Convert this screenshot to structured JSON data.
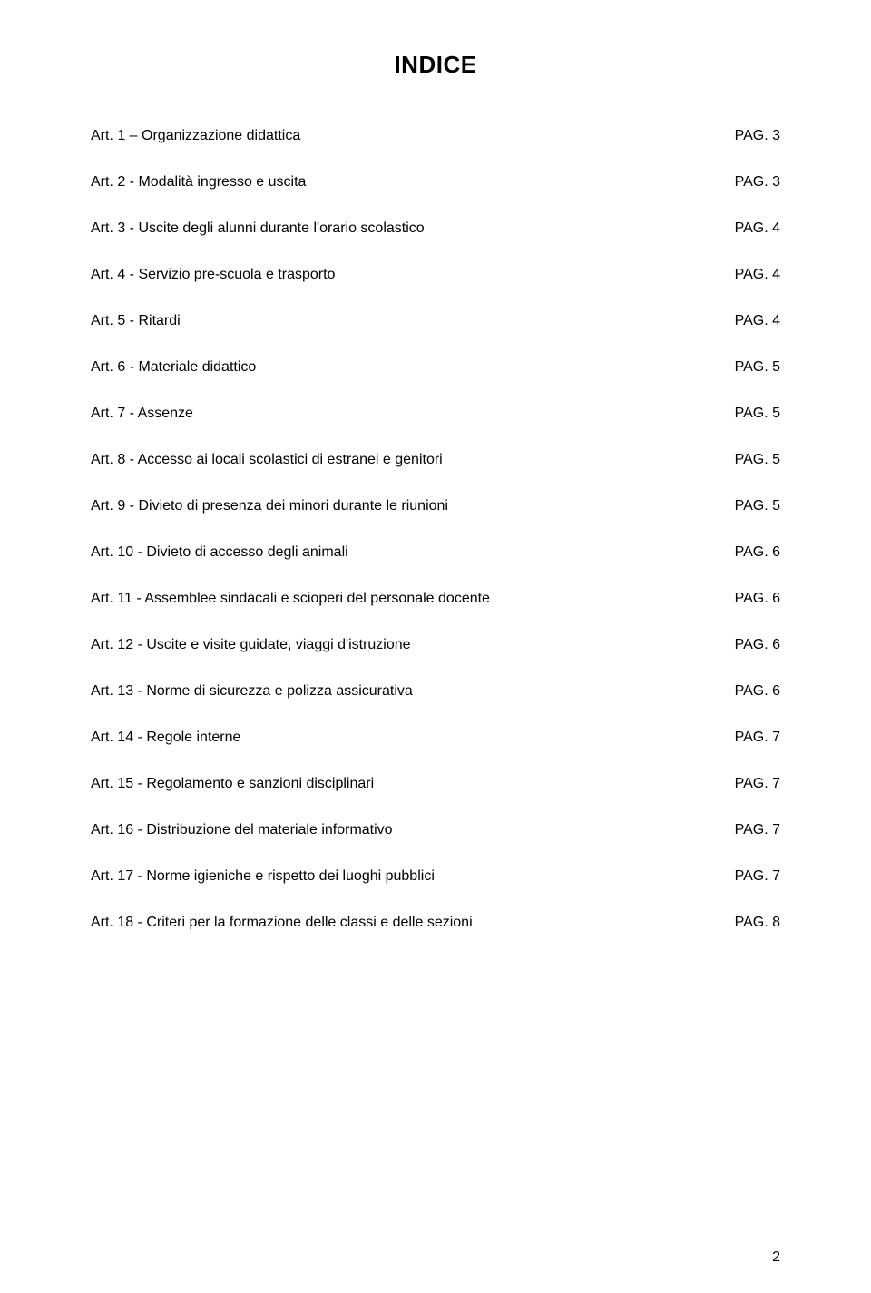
{
  "title": "INDICE",
  "toc": [
    {
      "label": "Art. 1 – Organizzazione didattica",
      "page": "PAG. 3"
    },
    {
      "label": "Art. 2 - Modalità  ingresso e uscita",
      "page": "PAG. 3"
    },
    {
      "label": "Art. 3 - Uscite degli alunni durante l'orario scolastico",
      "page": "PAG. 4"
    },
    {
      "label": "Art. 4 - Servizio pre-scuola e trasporto",
      "page": "PAG. 4"
    },
    {
      "label": "Art. 5 - Ritardi",
      "page": "PAG. 4"
    },
    {
      "label": "Art. 6 - Materiale didattico",
      "page": "PAG. 5"
    },
    {
      "label": "Art. 7 - Assenze",
      "page": "PAG. 5"
    },
    {
      "label": "Art. 8 - Accesso ai locali scolastici di estranei e genitori",
      "page": "PAG. 5"
    },
    {
      "label": "Art. 9 - Divieto di presenza dei minori durante le riunioni",
      "page": "PAG. 5"
    },
    {
      "label": "Art. 10 - Divieto di accesso degli animali",
      "page": "PAG. 6"
    },
    {
      "label": "Art. 11 - Assemblee sindacali e scioperi del personale docente",
      "page": "PAG. 6"
    },
    {
      "label": "Art. 12 - Uscite e visite guidate, viaggi d'istruzione",
      "page": "PAG. 6"
    },
    {
      "label": "Art. 13 - Norme di sicurezza e polizza assicurativa",
      "page": "PAG. 6"
    },
    {
      "label": "Art. 14 -  Regole interne",
      "page": "PAG. 7"
    },
    {
      "label": "Art. 15 - Regolamento e sanzioni disciplinari",
      "page": "PAG. 7"
    },
    {
      "label": "Art. 16 - Distribuzione del materiale informativo",
      "page": "PAG. 7"
    },
    {
      "label": "Art. 17 - Norme igieniche e rispetto dei luoghi pubblici",
      "page": "PAG. 7"
    },
    {
      "label": "Art. 18 - Criteri per la formazione delle classi e delle sezioni",
      "page": "PAG. 8"
    }
  ],
  "page_number": "2",
  "style": {
    "text_color": "#000000",
    "background_color": "#ffffff",
    "title_fontsize": 26,
    "body_fontsize": 16,
    "row_gap": 33,
    "font_family": "Verdana, Tahoma, Geneva, sans-serif"
  }
}
